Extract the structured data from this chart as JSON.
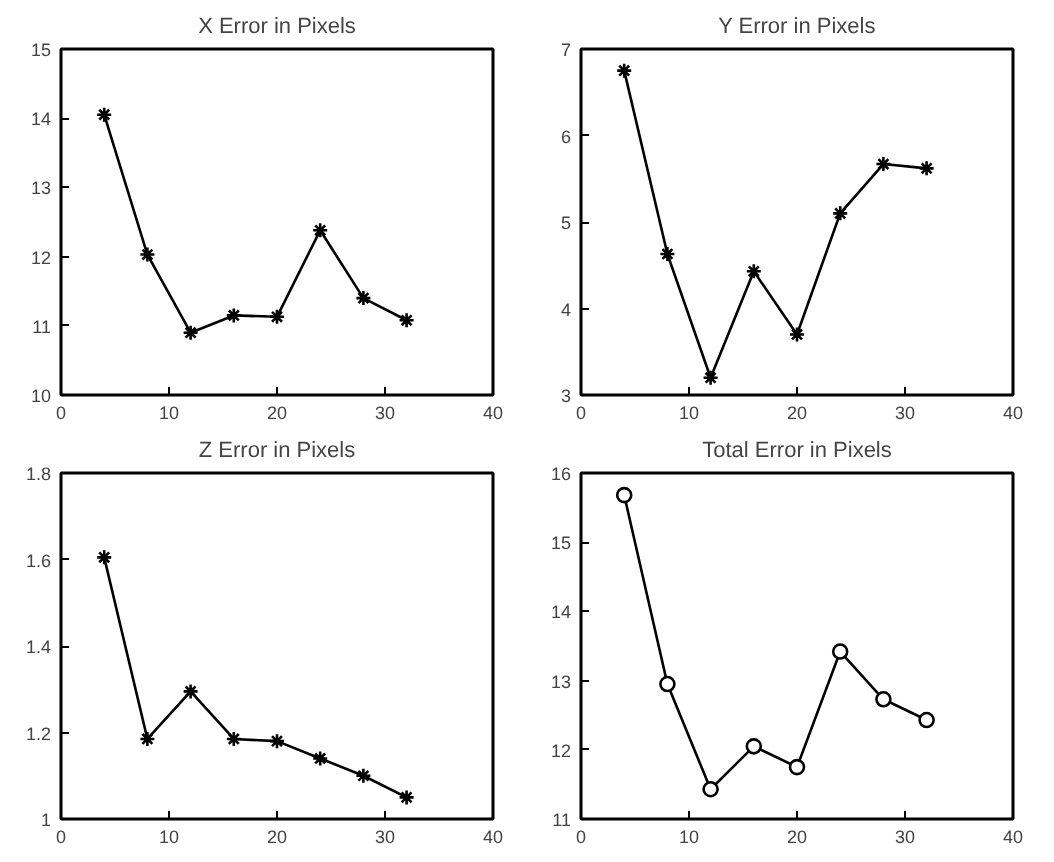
{
  "chart_data": [
    {
      "type": "line",
      "title": "X Error in Pixels",
      "x": [
        4,
        8,
        12,
        16,
        20,
        24,
        28,
        32
      ],
      "series": [
        {
          "color": "#000000",
          "values": [
            14.05,
            12.03,
            10.9,
            11.15,
            11.13,
            12.38,
            11.4,
            11.08
          ]
        }
      ],
      "xlim": [
        0,
        40
      ],
      "xticks": [
        0,
        10,
        20,
        30,
        40
      ],
      "ylim": [
        10,
        15
      ],
      "yticks": [
        10,
        11,
        12,
        13,
        14,
        15
      ],
      "marker": "cross",
      "grid": false
    },
    {
      "type": "line",
      "title": "Y Error in Pixels",
      "x": [
        4,
        8,
        12,
        16,
        20,
        24,
        28,
        32
      ],
      "series": [
        {
          "color": "#000000",
          "values": [
            6.75,
            4.63,
            3.2,
            4.43,
            3.7,
            5.1,
            5.67,
            5.62
          ]
        }
      ],
      "xlim": [
        0,
        40
      ],
      "xticks": [
        0,
        10,
        20,
        30,
        40
      ],
      "ylim": [
        3,
        7
      ],
      "yticks": [
        3,
        4,
        5,
        6,
        7
      ],
      "marker": "cross",
      "grid": false
    },
    {
      "type": "line",
      "title": "Z Error in Pixels",
      "x": [
        4,
        8,
        12,
        16,
        20,
        24,
        28,
        32
      ],
      "series": [
        {
          "color": "#000000",
          "values": [
            1.605,
            1.185,
            1.295,
            1.185,
            1.18,
            1.14,
            1.1,
            1.05
          ]
        }
      ],
      "xlim": [
        0,
        40
      ],
      "xticks": [
        0,
        10,
        20,
        30,
        40
      ],
      "ylim": [
        1,
        1.8
      ],
      "yticks": [
        1,
        1.2,
        1.4,
        1.6,
        1.8
      ],
      "marker": "cross",
      "grid": false
    },
    {
      "type": "line",
      "title": "Total Error in Pixels",
      "x": [
        4,
        8,
        12,
        16,
        20,
        24,
        28,
        32
      ],
      "series": [
        {
          "color": "#000000",
          "values": [
            15.68,
            12.95,
            11.43,
            12.05,
            11.75,
            13.42,
            12.73,
            12.43
          ]
        }
      ],
      "xlim": [
        0,
        40
      ],
      "xticks": [
        0,
        10,
        20,
        30,
        40
      ],
      "ylim": [
        11,
        16
      ],
      "yticks": [
        11,
        12,
        13,
        14,
        15,
        16
      ],
      "marker": "circle",
      "grid": false
    }
  ]
}
